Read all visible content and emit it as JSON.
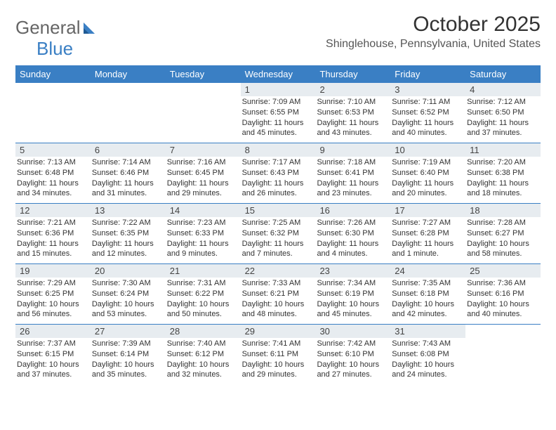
{
  "logo": {
    "text1": "General",
    "text2": "Blue"
  },
  "title": "October 2025",
  "location": "Shinglehouse, Pennsylvania, United States",
  "colors": {
    "header_bg": "#3a7fc4",
    "header_text": "#ffffff",
    "daynum_bg": "#e7ecf0",
    "row_border": "#3a7fc4",
    "body_text": "#333333",
    "background": "#ffffff"
  },
  "fonts": {
    "month_title_pt": 30,
    "location_pt": 16,
    "day_header_pt": 13,
    "day_num_pt": 13,
    "day_line_pt": 11
  },
  "layout": {
    "columns": 7,
    "rows": 5
  },
  "day_headers": [
    "Sunday",
    "Monday",
    "Tuesday",
    "Wednesday",
    "Thursday",
    "Friday",
    "Saturday"
  ],
  "weeks": [
    [
      null,
      null,
      null,
      {
        "n": "1",
        "sunrise": "Sunrise: 7:09 AM",
        "sunset": "Sunset: 6:55 PM",
        "day1": "Daylight: 11 hours",
        "day2": "and 45 minutes."
      },
      {
        "n": "2",
        "sunrise": "Sunrise: 7:10 AM",
        "sunset": "Sunset: 6:53 PM",
        "day1": "Daylight: 11 hours",
        "day2": "and 43 minutes."
      },
      {
        "n": "3",
        "sunrise": "Sunrise: 7:11 AM",
        "sunset": "Sunset: 6:52 PM",
        "day1": "Daylight: 11 hours",
        "day2": "and 40 minutes."
      },
      {
        "n": "4",
        "sunrise": "Sunrise: 7:12 AM",
        "sunset": "Sunset: 6:50 PM",
        "day1": "Daylight: 11 hours",
        "day2": "and 37 minutes."
      }
    ],
    [
      {
        "n": "5",
        "sunrise": "Sunrise: 7:13 AM",
        "sunset": "Sunset: 6:48 PM",
        "day1": "Daylight: 11 hours",
        "day2": "and 34 minutes."
      },
      {
        "n": "6",
        "sunrise": "Sunrise: 7:14 AM",
        "sunset": "Sunset: 6:46 PM",
        "day1": "Daylight: 11 hours",
        "day2": "and 31 minutes."
      },
      {
        "n": "7",
        "sunrise": "Sunrise: 7:16 AM",
        "sunset": "Sunset: 6:45 PM",
        "day1": "Daylight: 11 hours",
        "day2": "and 29 minutes."
      },
      {
        "n": "8",
        "sunrise": "Sunrise: 7:17 AM",
        "sunset": "Sunset: 6:43 PM",
        "day1": "Daylight: 11 hours",
        "day2": "and 26 minutes."
      },
      {
        "n": "9",
        "sunrise": "Sunrise: 7:18 AM",
        "sunset": "Sunset: 6:41 PM",
        "day1": "Daylight: 11 hours",
        "day2": "and 23 minutes."
      },
      {
        "n": "10",
        "sunrise": "Sunrise: 7:19 AM",
        "sunset": "Sunset: 6:40 PM",
        "day1": "Daylight: 11 hours",
        "day2": "and 20 minutes."
      },
      {
        "n": "11",
        "sunrise": "Sunrise: 7:20 AM",
        "sunset": "Sunset: 6:38 PM",
        "day1": "Daylight: 11 hours",
        "day2": "and 18 minutes."
      }
    ],
    [
      {
        "n": "12",
        "sunrise": "Sunrise: 7:21 AM",
        "sunset": "Sunset: 6:36 PM",
        "day1": "Daylight: 11 hours",
        "day2": "and 15 minutes."
      },
      {
        "n": "13",
        "sunrise": "Sunrise: 7:22 AM",
        "sunset": "Sunset: 6:35 PM",
        "day1": "Daylight: 11 hours",
        "day2": "and 12 minutes."
      },
      {
        "n": "14",
        "sunrise": "Sunrise: 7:23 AM",
        "sunset": "Sunset: 6:33 PM",
        "day1": "Daylight: 11 hours",
        "day2": "and 9 minutes."
      },
      {
        "n": "15",
        "sunrise": "Sunrise: 7:25 AM",
        "sunset": "Sunset: 6:32 PM",
        "day1": "Daylight: 11 hours",
        "day2": "and 7 minutes."
      },
      {
        "n": "16",
        "sunrise": "Sunrise: 7:26 AM",
        "sunset": "Sunset: 6:30 PM",
        "day1": "Daylight: 11 hours",
        "day2": "and 4 minutes."
      },
      {
        "n": "17",
        "sunrise": "Sunrise: 7:27 AM",
        "sunset": "Sunset: 6:28 PM",
        "day1": "Daylight: 11 hours",
        "day2": "and 1 minute."
      },
      {
        "n": "18",
        "sunrise": "Sunrise: 7:28 AM",
        "sunset": "Sunset: 6:27 PM",
        "day1": "Daylight: 10 hours",
        "day2": "and 58 minutes."
      }
    ],
    [
      {
        "n": "19",
        "sunrise": "Sunrise: 7:29 AM",
        "sunset": "Sunset: 6:25 PM",
        "day1": "Daylight: 10 hours",
        "day2": "and 56 minutes."
      },
      {
        "n": "20",
        "sunrise": "Sunrise: 7:30 AM",
        "sunset": "Sunset: 6:24 PM",
        "day1": "Daylight: 10 hours",
        "day2": "and 53 minutes."
      },
      {
        "n": "21",
        "sunrise": "Sunrise: 7:31 AM",
        "sunset": "Sunset: 6:22 PM",
        "day1": "Daylight: 10 hours",
        "day2": "and 50 minutes."
      },
      {
        "n": "22",
        "sunrise": "Sunrise: 7:33 AM",
        "sunset": "Sunset: 6:21 PM",
        "day1": "Daylight: 10 hours",
        "day2": "and 48 minutes."
      },
      {
        "n": "23",
        "sunrise": "Sunrise: 7:34 AM",
        "sunset": "Sunset: 6:19 PM",
        "day1": "Daylight: 10 hours",
        "day2": "and 45 minutes."
      },
      {
        "n": "24",
        "sunrise": "Sunrise: 7:35 AM",
        "sunset": "Sunset: 6:18 PM",
        "day1": "Daylight: 10 hours",
        "day2": "and 42 minutes."
      },
      {
        "n": "25",
        "sunrise": "Sunrise: 7:36 AM",
        "sunset": "Sunset: 6:16 PM",
        "day1": "Daylight: 10 hours",
        "day2": "and 40 minutes."
      }
    ],
    [
      {
        "n": "26",
        "sunrise": "Sunrise: 7:37 AM",
        "sunset": "Sunset: 6:15 PM",
        "day1": "Daylight: 10 hours",
        "day2": "and 37 minutes."
      },
      {
        "n": "27",
        "sunrise": "Sunrise: 7:39 AM",
        "sunset": "Sunset: 6:14 PM",
        "day1": "Daylight: 10 hours",
        "day2": "and 35 minutes."
      },
      {
        "n": "28",
        "sunrise": "Sunrise: 7:40 AM",
        "sunset": "Sunset: 6:12 PM",
        "day1": "Daylight: 10 hours",
        "day2": "and 32 minutes."
      },
      {
        "n": "29",
        "sunrise": "Sunrise: 7:41 AM",
        "sunset": "Sunset: 6:11 PM",
        "day1": "Daylight: 10 hours",
        "day2": "and 29 minutes."
      },
      {
        "n": "30",
        "sunrise": "Sunrise: 7:42 AM",
        "sunset": "Sunset: 6:10 PM",
        "day1": "Daylight: 10 hours",
        "day2": "and 27 minutes."
      },
      {
        "n": "31",
        "sunrise": "Sunrise: 7:43 AM",
        "sunset": "Sunset: 6:08 PM",
        "day1": "Daylight: 10 hours",
        "day2": "and 24 minutes."
      },
      null
    ]
  ]
}
